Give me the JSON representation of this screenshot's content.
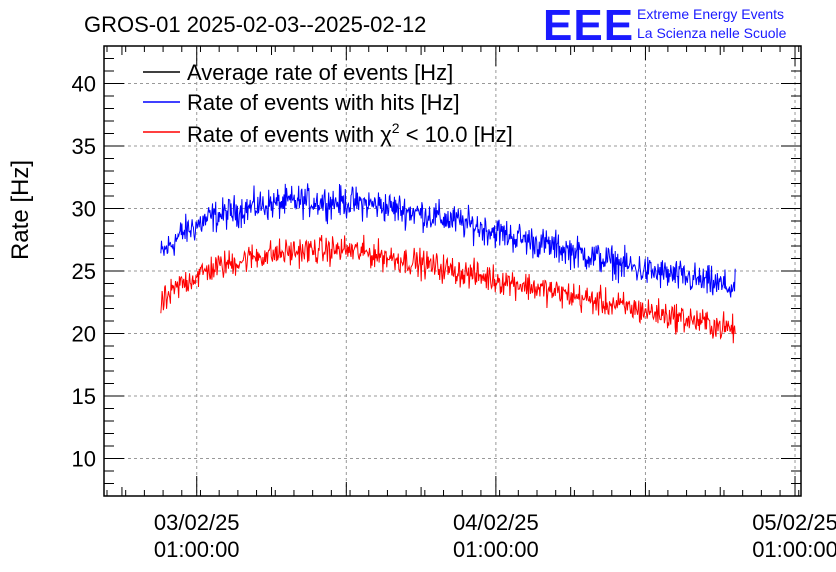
{
  "chart_data": {
    "type": "line",
    "title": "GROS-01 2025-02-03--2025-02-12",
    "ylabel": "Rate [Hz]",
    "xlabel": "",
    "ylim": [
      7,
      43
    ],
    "xlim": [
      -0.31,
      2.02
    ],
    "grid": true,
    "legend_position": "top-left",
    "x_ticks": [
      {
        "date": "03/02/25",
        "time": "01:00:00",
        "x": 0
      },
      {
        "date": "04/02/25",
        "time": "01:00:00",
        "x": 1
      },
      {
        "date": "05/02/25",
        "time": "01:00:00",
        "x": 2
      }
    ],
    "y_ticks": [
      10,
      15,
      20,
      25,
      30,
      35,
      40
    ],
    "x_units": "days from 03/02/25 01:00:00",
    "series": [
      {
        "name": "Average rate of events [Hz]",
        "color": "#000000",
        "x": [],
        "values": []
      },
      {
        "name": "Rate of events with hits [Hz]",
        "color": "#0000ff",
        "noise": 0.9,
        "x": [
          -0.12,
          -0.05,
          0.05,
          0.2,
          0.35,
          0.5,
          0.6,
          0.75,
          0.9,
          1.05,
          1.2,
          1.35,
          1.5,
          1.65,
          1.8
        ],
        "values": [
          26.3,
          28.0,
          29.3,
          30.2,
          30.6,
          30.5,
          30.3,
          29.6,
          28.8,
          27.8,
          26.9,
          26.0,
          25.0,
          24.4,
          23.6
        ]
      },
      {
        "name": "Rate of events with χ² < 10.0 [Hz]",
        "legend_prefix": "Rate of events with ",
        "legend_chi": "χ",
        "legend_sup": "2",
        "legend_suffix": " < 10.0 [Hz]",
        "color": "#ff0000",
        "noise": 0.8,
        "x": [
          -0.12,
          -0.05,
          0.05,
          0.2,
          0.35,
          0.5,
          0.6,
          0.75,
          0.9,
          1.05,
          1.2,
          1.35,
          1.5,
          1.65,
          1.8
        ],
        "values": [
          22.3,
          24.0,
          25.2,
          26.2,
          26.6,
          26.7,
          26.3,
          25.6,
          24.8,
          24.1,
          23.3,
          22.5,
          21.8,
          21.1,
          20.3
        ]
      }
    ]
  },
  "logo": {
    "letters": "EEE",
    "line1": "Extreme Energy Events",
    "line2": "La Scienza nelle Scuole",
    "color": "#1a1aff"
  }
}
